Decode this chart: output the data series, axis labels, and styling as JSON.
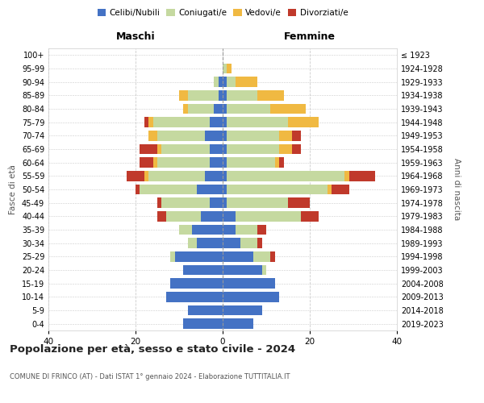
{
  "age_groups": [
    "0-4",
    "5-9",
    "10-14",
    "15-19",
    "20-24",
    "25-29",
    "30-34",
    "35-39",
    "40-44",
    "45-49",
    "50-54",
    "55-59",
    "60-64",
    "65-69",
    "70-74",
    "75-79",
    "80-84",
    "85-89",
    "90-94",
    "95-99",
    "100+"
  ],
  "birth_years": [
    "2019-2023",
    "2014-2018",
    "2009-2013",
    "2004-2008",
    "1999-2003",
    "1994-1998",
    "1989-1993",
    "1984-1988",
    "1979-1983",
    "1974-1978",
    "1969-1973",
    "1964-1968",
    "1959-1963",
    "1954-1958",
    "1949-1953",
    "1944-1948",
    "1939-1943",
    "1934-1938",
    "1929-1933",
    "1924-1928",
    "≤ 1923"
  ],
  "colors": {
    "celibe": "#4472C4",
    "coniugato": "#C5D9A0",
    "vedovo": "#F0B942",
    "divorziato": "#C0392B"
  },
  "maschi": {
    "celibe": [
      9,
      8,
      13,
      12,
      9,
      11,
      6,
      7,
      5,
      3,
      6,
      4,
      3,
      3,
      4,
      3,
      2,
      1,
      1,
      0,
      0
    ],
    "coniugato": [
      0,
      0,
      0,
      0,
      0,
      1,
      2,
      3,
      8,
      11,
      13,
      13,
      12,
      11,
      11,
      13,
      6,
      7,
      1,
      0,
      0
    ],
    "vedovo": [
      0,
      0,
      0,
      0,
      0,
      0,
      0,
      0,
      0,
      0,
      0,
      1,
      1,
      1,
      2,
      1,
      1,
      2,
      0,
      0,
      0
    ],
    "divorziato": [
      0,
      0,
      0,
      0,
      0,
      0,
      0,
      0,
      2,
      1,
      1,
      4,
      3,
      4,
      0,
      1,
      0,
      0,
      0,
      0,
      0
    ]
  },
  "femmine": {
    "nubile": [
      7,
      9,
      13,
      12,
      9,
      7,
      4,
      3,
      3,
      1,
      1,
      1,
      1,
      1,
      1,
      1,
      1,
      1,
      1,
      0,
      0
    ],
    "coniugata": [
      0,
      0,
      0,
      0,
      1,
      4,
      4,
      5,
      15,
      14,
      23,
      27,
      11,
      12,
      12,
      14,
      10,
      7,
      2,
      1,
      0
    ],
    "vedova": [
      0,
      0,
      0,
      0,
      0,
      0,
      0,
      0,
      0,
      0,
      1,
      1,
      1,
      3,
      3,
      7,
      8,
      6,
      5,
      1,
      0
    ],
    "divorziata": [
      0,
      0,
      0,
      0,
      0,
      1,
      1,
      2,
      4,
      5,
      4,
      6,
      1,
      2,
      2,
      0,
      0,
      0,
      0,
      0,
      0
    ]
  },
  "xlim": 40,
  "title": "Popolazione per età, sesso e stato civile - 2024",
  "subtitle": "COMUNE DI FRINCO (AT) - Dati ISTAT 1° gennaio 2024 - Elaborazione TUTTITALIA.IT",
  "xlabel_left": "Maschi",
  "xlabel_right": "Femmine",
  "ylabel": "Fasce di età",
  "ylabel_right": "Anni di nascita",
  "legend_labels": [
    "Celibi/Nubili",
    "Coniugati/e",
    "Vedovi/e",
    "Divorziati/e"
  ],
  "bg_color": "#FFFFFF",
  "grid_color": "#CCCCCC",
  "bar_height": 0.75
}
